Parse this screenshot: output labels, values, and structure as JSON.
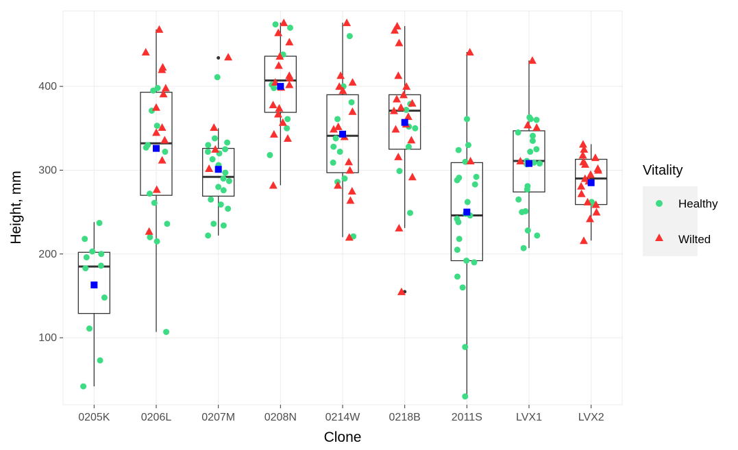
{
  "chart_data": {
    "type": "box",
    "xlabel": "Clone",
    "ylabel": "Height, mm",
    "ylim": [
      20,
      490
    ],
    "yticks": [
      100,
      200,
      300,
      400
    ],
    "grid": true,
    "legend": {
      "title": "Vitality",
      "placement": "right",
      "entries": [
        {
          "label": "Healthy",
          "color": "#3ddc84",
          "shape": "circle"
        },
        {
          "label": "Wilted",
          "color": "#f8312f",
          "shape": "triangle"
        }
      ]
    },
    "mean_marker_color": "#0000ff",
    "categories": [
      "0205K",
      "0206L",
      "0207M",
      "0208N",
      "0214W",
      "0218B",
      "2011S",
      "LVX1",
      "LVX2"
    ],
    "boxes": [
      {
        "q1": 129,
        "median": 185,
        "q3": 202,
        "whisker_low": 42,
        "whisker_high": 238,
        "mean": 163,
        "outliers": []
      },
      {
        "q1": 270,
        "median": 332,
        "q3": 393,
        "whisker_low": 107,
        "whisker_high": 468,
        "mean": 326,
        "outliers": []
      },
      {
        "q1": 269,
        "median": 292,
        "q3": 326,
        "whisker_low": 222,
        "whisker_high": 350,
        "mean": 301,
        "outliers": [
          434,
          411
        ]
      },
      {
        "q1": 369,
        "median": 407,
        "q3": 436,
        "whisker_low": 282,
        "whisker_high": 476,
        "mean": 400,
        "outliers": []
      },
      {
        "q1": 297,
        "median": 341,
        "q3": 390,
        "whisker_low": 220,
        "whisker_high": 476,
        "mean": 343,
        "outliers": []
      },
      {
        "q1": 325,
        "median": 371,
        "q3": 390,
        "whisker_low": 231,
        "whisker_high": 472,
        "mean": 357,
        "outliers": [
          155
        ]
      },
      {
        "q1": 192,
        "median": 246,
        "q3": 309,
        "whisker_low": 30,
        "whisker_high": 441,
        "mean": 250,
        "outliers": []
      },
      {
        "q1": 274,
        "median": 311,
        "q3": 347,
        "whisker_low": 207,
        "whisker_high": 431,
        "mean": 308,
        "outliers": []
      },
      {
        "q1": 259,
        "median": 290,
        "q3": 313,
        "whisker_low": 216,
        "whisker_high": 331,
        "mean": 285,
        "outliers": []
      }
    ],
    "points": [
      {
        "series": "Healthy",
        "values": [
          [
            237,
            218,
            203,
            200,
            196,
            186,
            183,
            148,
            111,
            73,
            42
          ],
          [
            398,
            395,
            371,
            353,
            330,
            327,
            322,
            272,
            261,
            236,
            220,
            215,
            107
          ],
          [
            411,
            338,
            333,
            330,
            325,
            322,
            320,
            313,
            306,
            297,
            290,
            287,
            280,
            276,
            265,
            259,
            254,
            236,
            234,
            222
          ],
          [
            474,
            470,
            438,
            402,
            398,
            361,
            350,
            318
          ],
          [
            460,
            400,
            381,
            361,
            338,
            328,
            322,
            309,
            290,
            286,
            221
          ],
          [
            379,
            372,
            352,
            350,
            328,
            299,
            249
          ],
          [
            361,
            330,
            324,
            310,
            292,
            291,
            288,
            283,
            262,
            248,
            246,
            242,
            238,
            218,
            205,
            192,
            190,
            173,
            160,
            89,
            30
          ],
          [
            363,
            361,
            360,
            345,
            341,
            335,
            325,
            322,
            311,
            309,
            308,
            307,
            281,
            277,
            265,
            251,
            250,
            228,
            222,
            207
          ],
          [
            262,
            260
          ]
        ]
      },
      {
        "series": "Wilted",
        "values": [
          [],
          [
            468,
            441,
            423,
            420,
            398,
            391,
            375,
            351,
            345,
            336,
            312,
            277,
            227
          ],
          [
            435,
            351,
            325,
            302
          ],
          [
            476,
            464,
            453,
            436,
            425,
            413,
            410,
            405,
            402,
            399,
            378,
            374,
            367,
            357,
            343,
            338,
            282
          ],
          [
            476,
            413,
            405,
            400,
            395,
            370,
            352,
            349,
            340,
            310,
            300,
            282,
            275,
            264,
            220
          ],
          [
            472,
            467,
            452,
            413,
            400,
            390,
            385,
            380,
            375,
            371,
            364,
            355,
            349,
            336,
            316,
            292,
            231,
            155
          ],
          [
            441,
            311
          ],
          [
            431,
            354,
            351,
            311
          ],
          [
            331,
            325,
            318,
            315,
            310,
            307,
            302,
            300,
            295,
            290,
            287,
            281,
            272,
            262,
            259,
            250,
            242,
            216
          ]
        ]
      }
    ]
  }
}
